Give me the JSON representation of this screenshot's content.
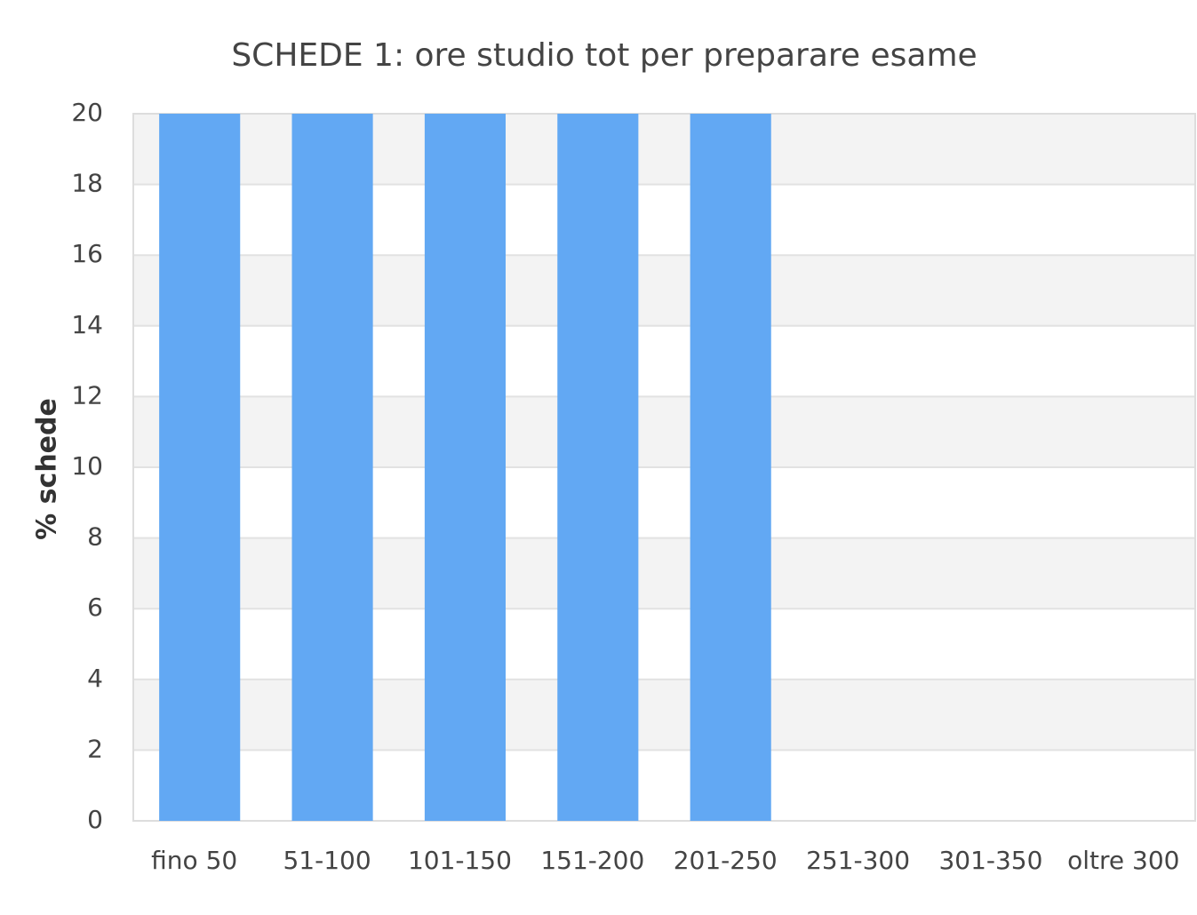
{
  "chart_data": {
    "type": "bar",
    "title": "SCHEDE 1: ore studio tot per preparare esame",
    "y_label": "% schede",
    "categories": [
      "fino 50",
      "51-100",
      "101-150",
      "151-200",
      "201-250",
      "251-300",
      "301-350",
      "oltre 300"
    ],
    "values": [
      20,
      20,
      20,
      20,
      20,
      0,
      0,
      0
    ],
    "color": "#62a8f3",
    "ylim": [
      0,
      20
    ],
    "yticks": [
      0,
      2,
      4,
      6,
      8,
      10,
      12,
      14,
      16,
      18,
      20
    ],
    "grid": true
  }
}
